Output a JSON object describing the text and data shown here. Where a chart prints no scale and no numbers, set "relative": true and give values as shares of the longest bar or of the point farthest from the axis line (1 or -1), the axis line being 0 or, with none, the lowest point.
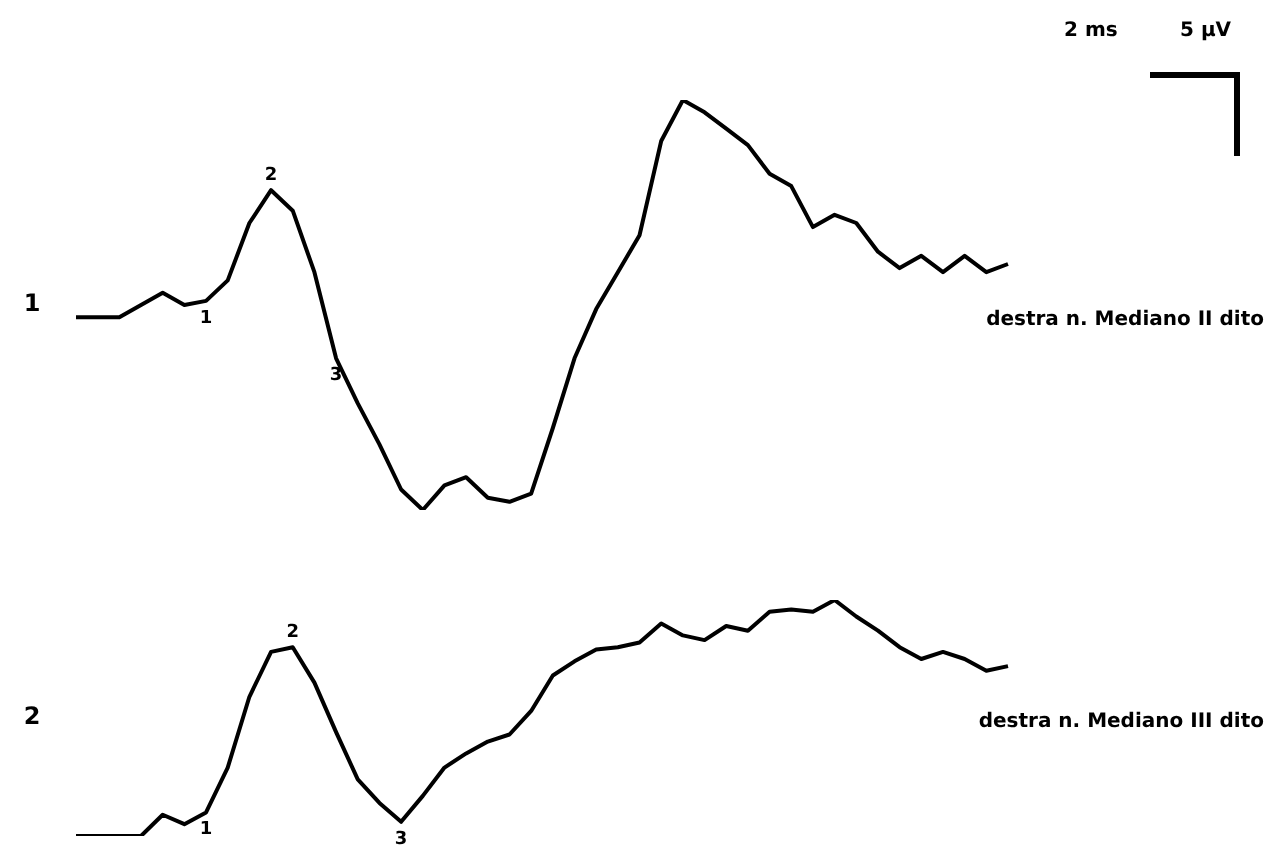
{
  "chart_data": [
    {
      "type": "line",
      "relative": true,
      "tick_labels": false,
      "grid": false,
      "legend": false,
      "marker": "none",
      "categories": [
        null,
        null,
        null,
        null,
        null,
        null,
        null,
        null,
        null,
        null,
        null,
        null,
        null,
        null,
        null,
        null,
        null,
        null,
        null,
        null,
        null,
        null,
        null,
        null,
        null,
        null,
        null,
        null,
        null,
        null,
        null,
        null,
        null,
        null,
        null,
        null,
        null,
        null,
        null,
        null,
        null,
        null,
        null,
        null
      ],
      "series": [
        {
          "name": "1",
          "color": "#000000",
          "values": [
            0.47,
            0.47,
            0.47,
            0.5,
            0.53,
            0.5,
            0.51,
            0.56,
            0.7,
            0.78,
            0.73,
            0.58,
            0.37,
            0.26,
            0.16,
            0.05,
            0,
            0.06,
            0.08,
            0.03,
            0.02,
            0.04,
            0.2,
            0.37,
            0.49,
            0.58,
            0.67,
            0.9,
            1,
            0.97,
            0.93,
            0.89,
            0.82,
            0.79,
            0.69,
            0.72,
            0.7,
            0.63,
            0.59,
            0.62,
            0.58,
            0.62,
            0.58,
            0.6
          ]
        }
      ],
      "annotations": [
        "destra n. Mediano II dito",
        "2 ms",
        "5 µV",
        "1",
        "2",
        "3"
      ]
    },
    {
      "type": "line",
      "relative": true,
      "tick_labels": false,
      "grid": false,
      "legend": false,
      "marker": "none",
      "categories": [
        null,
        null,
        null,
        null,
        null,
        null,
        null,
        null,
        null,
        null,
        null,
        null,
        null,
        null,
        null,
        null,
        null,
        null,
        null,
        null,
        null,
        null,
        null,
        null,
        null,
        null,
        null,
        null,
        null,
        null,
        null,
        null,
        null,
        null,
        null,
        null,
        null,
        null,
        null,
        null,
        null,
        null,
        null,
        null
      ],
      "series": [
        {
          "name": "2",
          "color": "#000000",
          "values": [
            0,
            0,
            0,
            0,
            0.09,
            0.05,
            0.1,
            0.29,
            0.59,
            0.78,
            0.8,
            0.65,
            0.44,
            0.24,
            0.14,
            0.06,
            0.17,
            0.29,
            0.35,
            0.4,
            0.43,
            0.53,
            0.68,
            0.74,
            0.79,
            0.8,
            0.82,
            0.9,
            0.85,
            0.83,
            0.89,
            0.87,
            0.95,
            0.96,
            0.95,
            1,
            0.93,
            0.87,
            0.8,
            0.75,
            0.78,
            0.75,
            0.7,
            0.72
          ]
        }
      ],
      "annotations": [
        "destra n. Mediano III dito",
        "1",
        "2",
        "3"
      ]
    }
  ]
}
